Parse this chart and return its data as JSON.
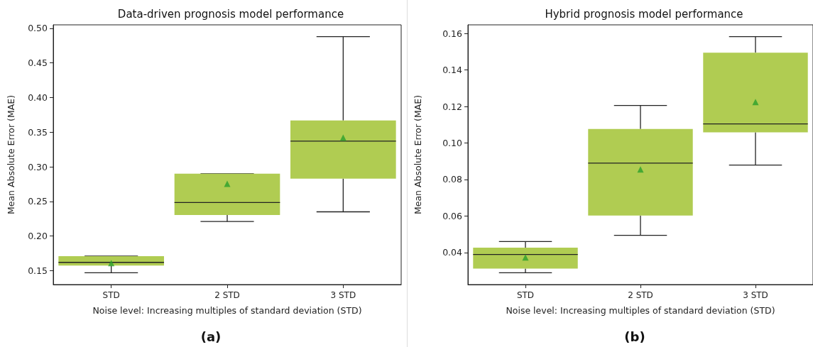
{
  "chart_data": [
    {
      "type": "box",
      "title": "Data-driven prognosis model performance",
      "xlabel": "Noise level: Increasing multiples of standard deviation (STD)",
      "ylabel": "Mean Absolute Error (MAE)",
      "annotations": [
        "(a)"
      ],
      "categories": [
        "STD",
        "2 STD",
        "3 STD"
      ],
      "color": "#b0cc52",
      "marker": "triangle",
      "boxes": [
        {
          "low": 0.147,
          "q1": 0.1575,
          "median": 0.162,
          "q3": 0.171,
          "high": 0.171,
          "mean": 0.161
        },
        {
          "low": 0.221,
          "q1": 0.2305,
          "median": 0.2485,
          "q3": 0.29,
          "high": 0.29,
          "mean": 0.2755
        },
        {
          "low": 0.235,
          "q1": 0.283,
          "median": 0.337,
          "q3": 0.367,
          "high": 0.488,
          "mean": 0.342
        }
      ],
      "ylim": [
        0.13,
        0.505
      ],
      "yticks": [
        {
          "value": 0.15,
          "label": "0.15"
        },
        {
          "value": 0.2,
          "label": "0.20"
        },
        {
          "value": 0.25,
          "label": "0.25"
        },
        {
          "value": 0.3,
          "label": "0.30"
        },
        {
          "value": 0.35,
          "label": "0.35"
        },
        {
          "value": 0.4,
          "label": "0.40"
        },
        {
          "value": 0.45,
          "label": "0.45"
        },
        {
          "value": 0.5,
          "label": "0.50"
        }
      ]
    },
    {
      "type": "box",
      "title": "Hybrid prognosis model performance",
      "xlabel": "Noise level: Increasing multiples of standard deviation (STD)",
      "ylabel": "Mean Absolute Error (MAE)",
      "annotations": [
        "(b)"
      ],
      "categories": [
        "STD",
        "2 STD",
        "3 STD"
      ],
      "color": "#b0cc52",
      "marker": "triangle",
      "boxes": [
        {
          "low": 0.0289,
          "q1": 0.0312,
          "median": 0.0389,
          "q3": 0.0426,
          "high": 0.046,
          "mean": 0.0373
        },
        {
          "low": 0.0494,
          "q1": 0.0602,
          "median": 0.089,
          "q3": 0.1077,
          "high": 0.1206,
          "mean": 0.0855
        },
        {
          "low": 0.0879,
          "q1": 0.1059,
          "median": 0.1105,
          "q3": 0.1495,
          "high": 0.1583,
          "mean": 0.1225
        }
      ],
      "ylim": [
        0.0224,
        0.1648
      ],
      "yticks": [
        {
          "value": 0.04,
          "label": "0.04"
        },
        {
          "value": 0.06,
          "label": "0.06"
        },
        {
          "value": 0.08,
          "label": "0.08"
        },
        {
          "value": 0.1,
          "label": "0.10"
        },
        {
          "value": 0.12,
          "label": "0.12"
        },
        {
          "value": 0.14,
          "label": "0.14"
        },
        {
          "value": 0.16,
          "label": "0.16"
        }
      ]
    }
  ]
}
